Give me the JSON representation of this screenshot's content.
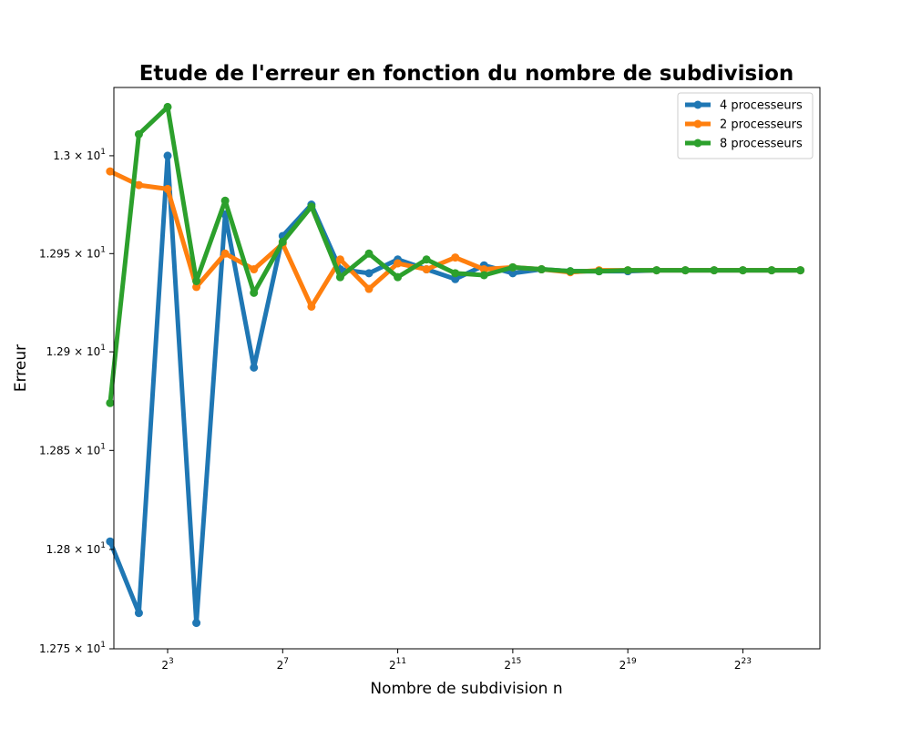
{
  "chart_data": {
    "type": "line",
    "title": "Etude de l'erreur en fonction du nombre de subdivision",
    "xlabel": "Nombre de subdivision n",
    "ylabel": "Erreur",
    "x_scale": "log2",
    "y_scale": "log",
    "xlim": [
      2.19,
      53687091
    ],
    "ylim": [
      12.75,
      13.035
    ],
    "grid": false,
    "legend_position": "top-right",
    "x_ticks": [
      {
        "value": 8,
        "base": "2",
        "exp": "3"
      },
      {
        "value": 128,
        "base": "2",
        "exp": "7"
      },
      {
        "value": 2048,
        "base": "2",
        "exp": "11"
      },
      {
        "value": 32768,
        "base": "2",
        "exp": "15"
      },
      {
        "value": 524288,
        "base": "2",
        "exp": "19"
      },
      {
        "value": 8388608,
        "base": "2",
        "exp": "23"
      }
    ],
    "y_ticks": [
      {
        "value": 12.75,
        "mant": "1.275",
        "base": "10",
        "exp": "1"
      },
      {
        "value": 12.8,
        "mant": "1.28",
        "base": "10",
        "exp": "1"
      },
      {
        "value": 12.85,
        "mant": "1.285",
        "base": "10",
        "exp": "1"
      },
      {
        "value": 12.9,
        "mant": "1.29",
        "base": "10",
        "exp": "1"
      },
      {
        "value": 12.95,
        "mant": "1.295",
        "base": "10",
        "exp": "1"
      },
      {
        "value": 13.0,
        "mant": "1.3",
        "base": "10",
        "exp": "1"
      }
    ],
    "x": [
      2,
      4,
      8,
      16,
      32,
      64,
      128,
      256,
      512,
      1024,
      2048,
      4096,
      8192,
      16384,
      32768,
      65536,
      131072,
      262144,
      524288,
      1048576,
      2097152,
      4194304,
      8388608,
      16777216,
      33554432
    ],
    "series": [
      {
        "name": "4 processeurs",
        "color": "#1f77b4",
        "values": [
          12.804,
          12.768,
          13.0,
          12.763,
          12.97,
          12.892,
          12.959,
          12.975,
          12.942,
          12.94,
          12.947,
          12.942,
          12.937,
          12.944,
          12.94,
          12.942,
          12.941,
          12.941,
          12.941,
          12.9415,
          12.9415,
          12.9415,
          12.9415,
          12.9415,
          12.9415
        ]
      },
      {
        "name": "2 processeurs",
        "color": "#ff7f0e",
        "values": [
          12.992,
          12.985,
          12.983,
          12.933,
          12.95,
          12.942,
          12.955,
          12.923,
          12.947,
          12.932,
          12.945,
          12.942,
          12.948,
          12.942,
          12.943,
          12.942,
          12.9405,
          12.9415,
          12.9415,
          12.9415,
          12.9415,
          12.9415,
          12.9415,
          12.9415,
          12.9415
        ]
      },
      {
        "name": "8 processeurs",
        "color": "#2ca02c",
        "values": [
          12.874,
          13.011,
          13.025,
          12.936,
          12.977,
          12.93,
          12.956,
          12.974,
          12.938,
          12.95,
          12.938,
          12.947,
          12.94,
          12.939,
          12.943,
          12.942,
          12.941,
          12.941,
          12.9415,
          12.9415,
          12.9415,
          12.9415,
          12.9415,
          12.9415,
          12.9415
        ]
      }
    ]
  }
}
